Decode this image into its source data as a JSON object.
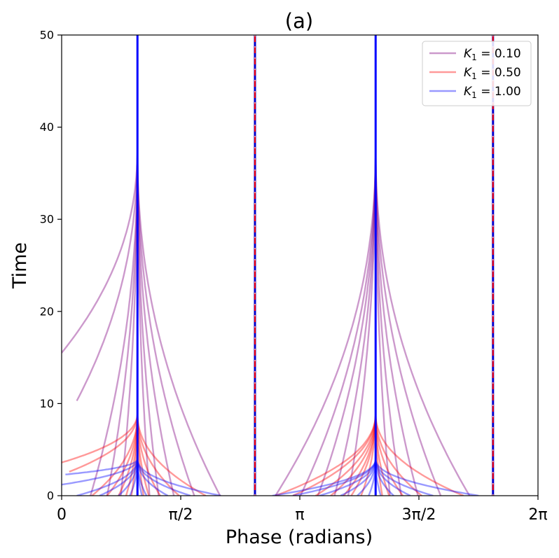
{
  "chart_data": {
    "type": "line",
    "title": "(a)",
    "xlabel": "Phase (radians)",
    "ylabel": "Time",
    "xlim": [
      0,
      6.2832
    ],
    "ylim": [
      0,
      50
    ],
    "xticks": [
      {
        "value": 0,
        "label": "0"
      },
      {
        "value": 1.5708,
        "label": "π/2"
      },
      {
        "value": 3.1416,
        "label": "π"
      },
      {
        "value": 4.7124,
        "label": "3π/2"
      },
      {
        "value": 6.2832,
        "label": "2π"
      }
    ],
    "yticks": [
      0,
      10,
      20,
      30,
      40,
      50
    ],
    "grid": false,
    "legend_position": "top-right",
    "attractors": [
      1.0,
      4.1416
    ],
    "repellers": [
      2.55,
      5.69
    ],
    "series": [
      {
        "name": "K_1 = 0.10",
        "label_main": "K",
        "label_sub": "1",
        "label_value": " = 0.10",
        "color": "#800080",
        "opacity": 0.4,
        "settle_time": 38,
        "start_phases": [
          0.0,
          0.2,
          0.38,
          0.6,
          0.78,
          1.16,
          1.28,
          1.48,
          1.75,
          2.09,
          2.82,
          3.15,
          3.38,
          3.6,
          3.78,
          4.33,
          4.48,
          4.7,
          5.0,
          5.38
        ],
        "start_times": [
          15.5,
          10.3,
          0,
          0,
          0,
          0,
          0,
          0,
          0,
          0,
          0,
          0,
          0,
          0,
          0,
          0,
          0,
          0,
          0,
          0
        ]
      },
      {
        "name": "K_1 = 0.50",
        "label_main": "K",
        "label_sub": "1",
        "label_value": " = 0.50",
        "color": "#ff0000",
        "opacity": 0.4,
        "settle_time": 9,
        "start_phases": [
          0.0,
          0.1,
          0.4,
          0.6,
          0.75,
          0.85,
          0.92,
          1.08,
          1.15,
          1.3,
          1.55,
          1.9,
          2.82,
          3.05,
          3.35,
          3.55,
          3.72,
          3.82,
          3.95,
          4.23,
          4.32,
          4.5,
          4.75,
          5.3
        ],
        "start_times": [
          3.6,
          2.6,
          0,
          0,
          0,
          0,
          0,
          0,
          0,
          0,
          0,
          0,
          0,
          0,
          0,
          0,
          0,
          0,
          0,
          0,
          0,
          0,
          0,
          0
        ]
      },
      {
        "name": "K_1 = 1.00",
        "label_main": "K",
        "label_sub": "1",
        "label_value": " = 1.00",
        "color": "#0000ff",
        "opacity": 0.4,
        "settle_time": 4,
        "start_phases": [
          0.0,
          0.05,
          0.2,
          0.5,
          0.75,
          0.9,
          1.06,
          1.12,
          1.4,
          1.7,
          2.1,
          2.78,
          3.05,
          3.4,
          3.68,
          3.9,
          4.05,
          4.21,
          4.38,
          4.6,
          4.9,
          5.5
        ],
        "start_times": [
          1.2,
          2.3,
          0,
          0,
          0,
          0,
          0,
          0,
          0,
          0,
          0,
          0,
          0,
          0,
          0,
          0,
          0,
          0,
          0,
          0,
          0,
          0
        ]
      }
    ]
  }
}
